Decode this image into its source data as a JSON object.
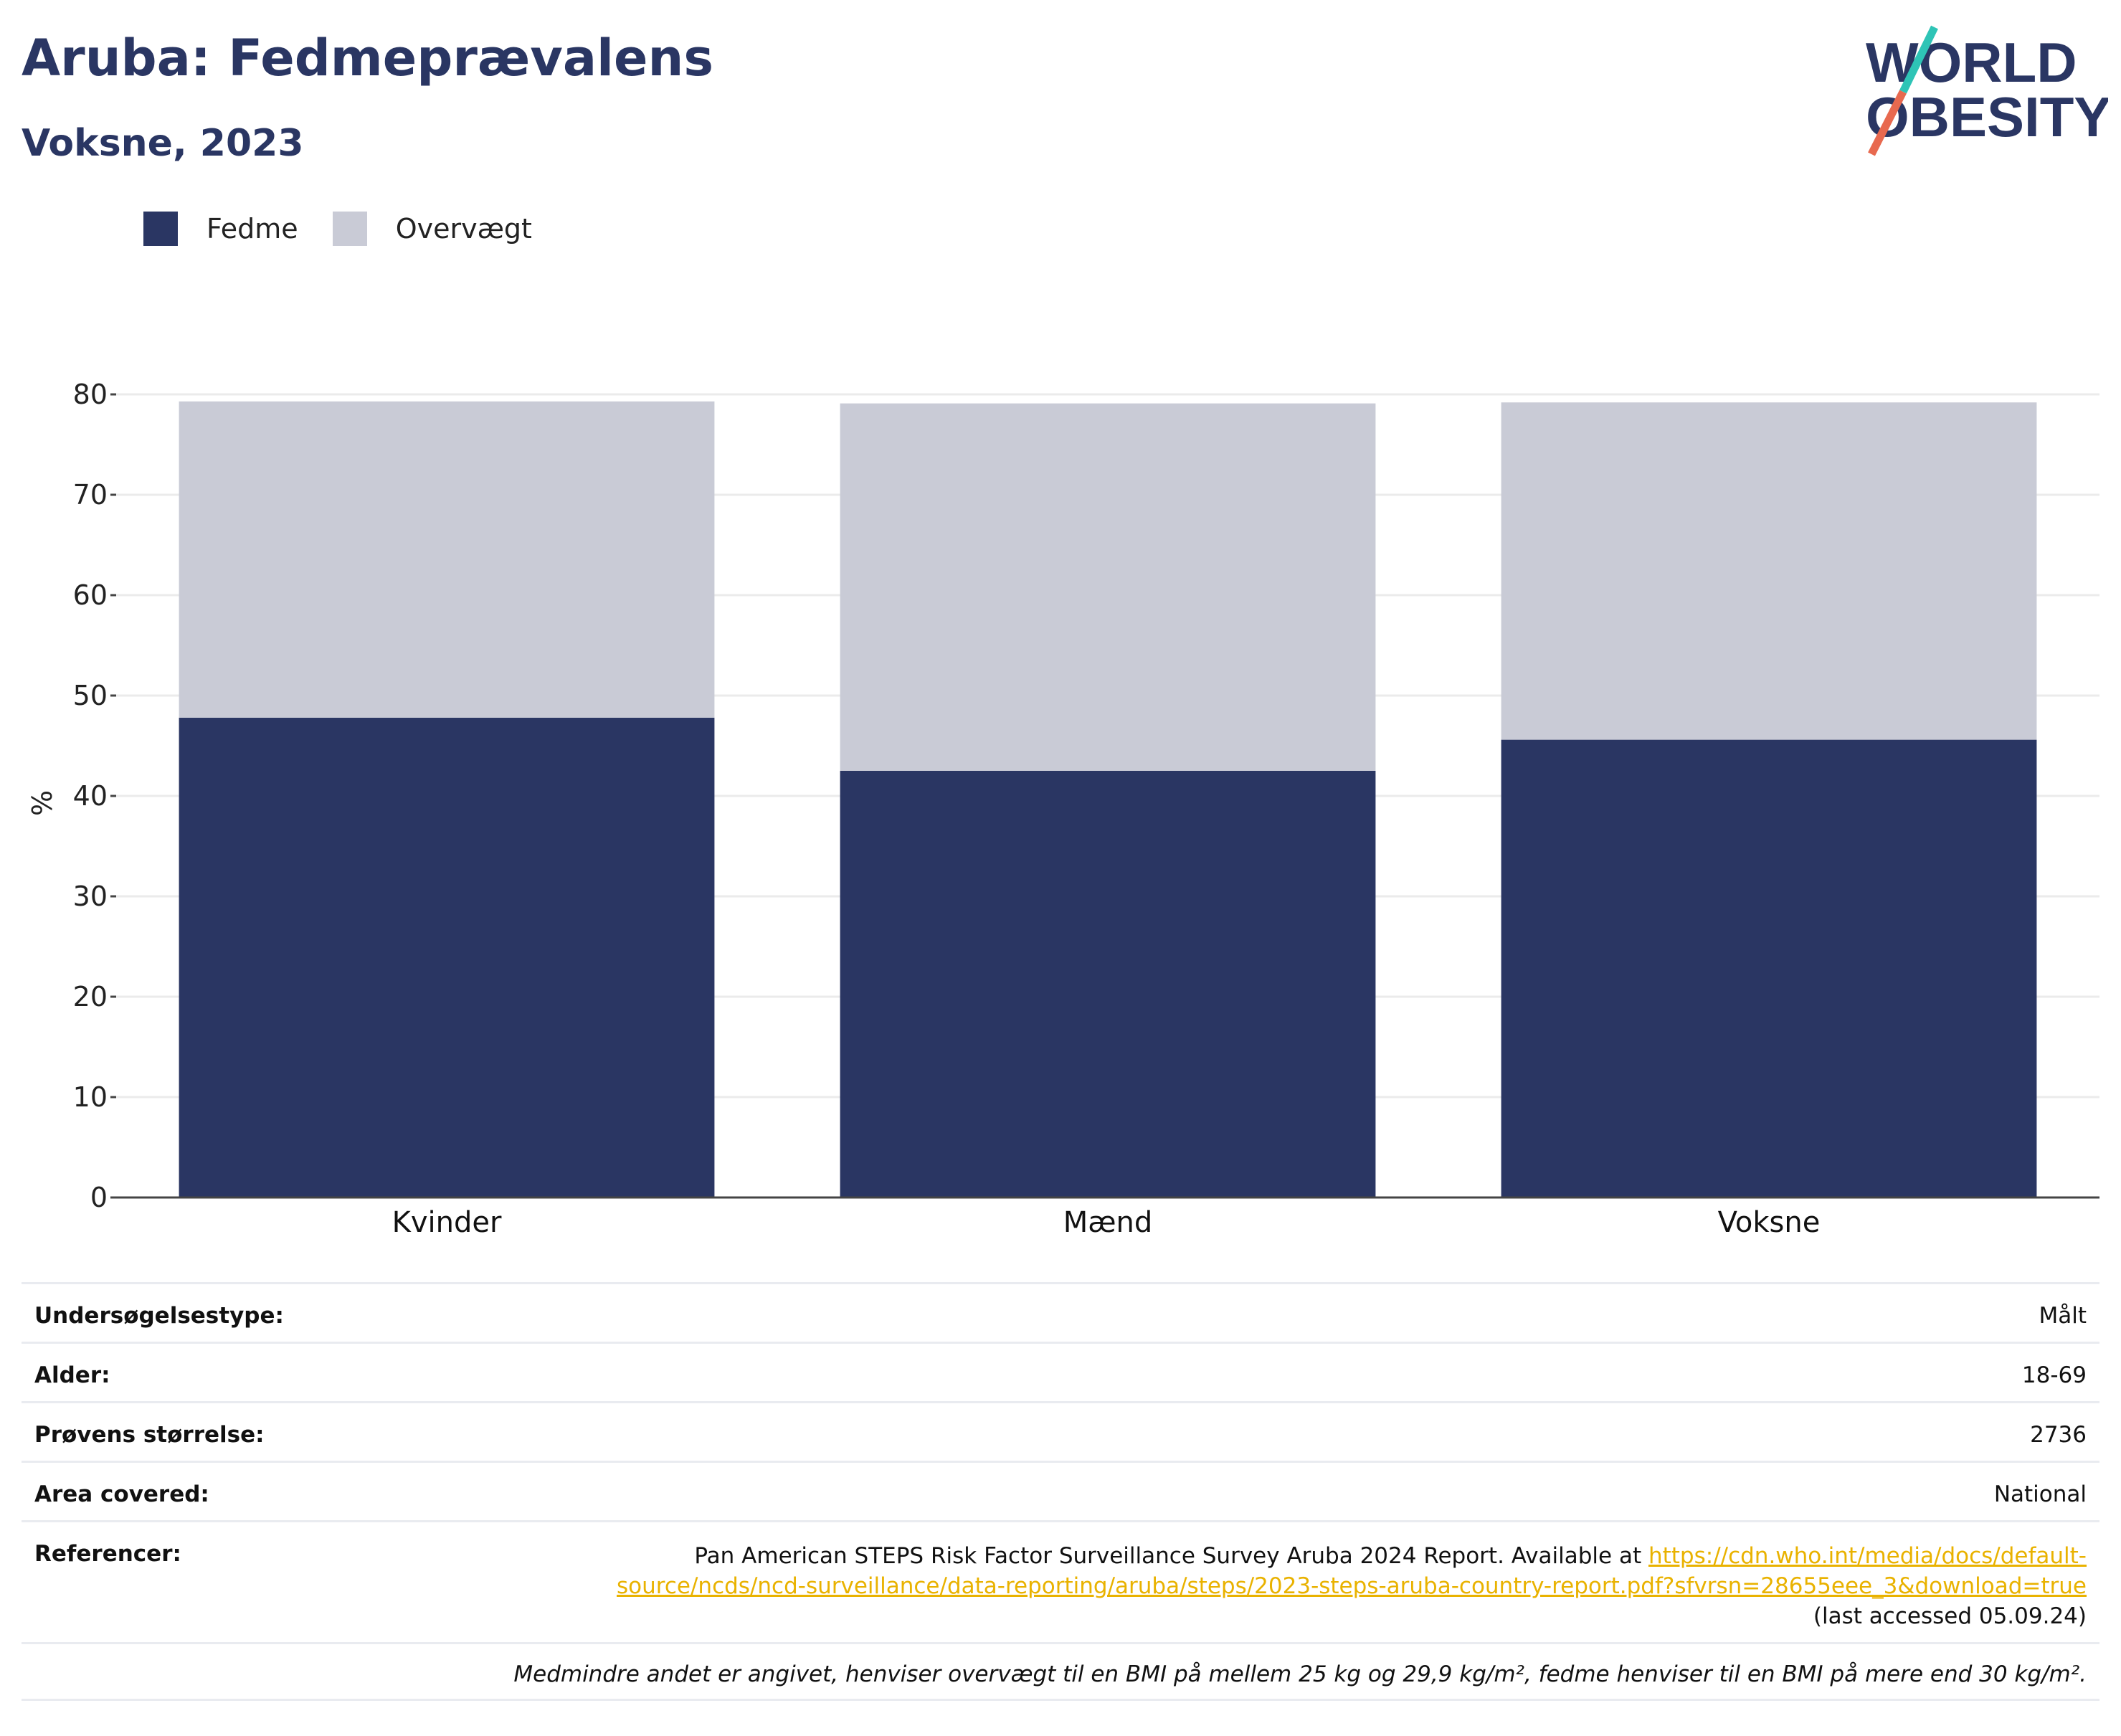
{
  "title": "Aruba: Fedmeprævalens",
  "subtitle": "Voksne, 2023",
  "logo": {
    "line1": "WORLD",
    "line2": "OBESITY",
    "slash_colors": [
      "#2ec4b6",
      "#e8694f"
    ]
  },
  "colors": {
    "fedme": "#2a3663",
    "overvaegt": "#c9cbd6",
    "grid": "#ebebeb",
    "axis": "#444444"
  },
  "chart_data": {
    "type": "bar",
    "stacked": true,
    "categories": [
      "Kvinder",
      "Mænd",
      "Voksne"
    ],
    "series": [
      {
        "name": "Fedme",
        "values": [
          47.8,
          42.5,
          45.6
        ]
      },
      {
        "name": "Overvægt",
        "values": [
          31.5,
          36.6,
          33.6
        ]
      }
    ],
    "ylabel": "%",
    "ylim": [
      0,
      80
    ],
    "yticks": [
      0,
      10,
      20,
      30,
      40,
      50,
      60,
      70,
      80
    ],
    "grid": true,
    "legend": "top-left"
  },
  "info": {
    "survey_label": "Undersøgelsestype:",
    "survey_value": "Målt",
    "age_label": "Alder:",
    "age_value": "18-69",
    "sample_label": "Prøvens størrelse:",
    "sample_value": "2736",
    "area_label": "Area covered:",
    "area_value": "National",
    "ref_label": "Referencer:",
    "ref_text": "Pan American STEPS Risk Factor Surveillance Survey Aruba 2024 Report. Available at ",
    "ref_link_1": "https://cdn.who.int/media/docs/default-",
    "ref_link_2": "source/ncds/ncd-surveillance/data-reporting/aruba/steps/2023-steps-aruba-country-report.pdf?sfvrsn=28655eee_3&download=true",
    "ref_accessed": "(last accessed 05.09.24)",
    "note": "Medmindre andet er angivet, henviser overvægt til en BMI på mellem 25 kg og 29,9 kg/m², fedme henviser til en BMI på mere end 30 kg/m²."
  }
}
